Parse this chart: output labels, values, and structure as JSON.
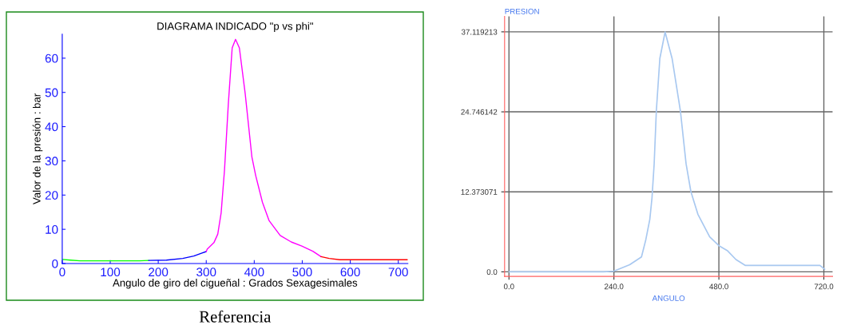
{
  "chart_data": [
    {
      "type": "line",
      "title": "DIAGRAMA INDICADO \"p vs phi\"",
      "xlabel": "Angulo de giro del cigueñal : Grados Sexagesimales",
      "ylabel": "Valor de la presión : bar",
      "xlim": [
        0,
        720
      ],
      "ylim": [
        0,
        67
      ],
      "xticks": [
        0,
        100,
        200,
        300,
        400,
        500,
        600,
        700
      ],
      "yticks": [
        0,
        10,
        20,
        30,
        40,
        50,
        60
      ],
      "grid": false,
      "annotations": [
        "Referencia"
      ],
      "series": [
        {
          "color": "#00ff00",
          "x": [
            0,
            17,
            37,
            161,
            180
          ],
          "values": [
            1.2,
            1.0,
            0.8,
            0.8,
            0.9
          ]
        },
        {
          "color": "#0000ff",
          "x": [
            180,
            217,
            251,
            274,
            290,
            300
          ],
          "values": [
            0.9,
            1.0,
            1.5,
            2.2,
            3.0,
            3.5
          ]
        },
        {
          "color": "#ff00ff",
          "x": [
            300,
            302,
            316,
            324,
            331,
            338,
            346,
            354,
            361,
            369,
            381,
            395,
            403,
            417,
            431,
            454,
            477,
            499,
            522,
            539
          ],
          "values": [
            3.5,
            4.2,
            6.1,
            8.6,
            14.8,
            27.3,
            46.7,
            63.0,
            65.5,
            63.0,
            49.8,
            31.2,
            25.7,
            17.9,
            12.5,
            8.2,
            6.3,
            5.1,
            3.6,
            2.0
          ]
        },
        {
          "color": "#ff0000",
          "x": [
            539,
            556,
            578,
            719
          ],
          "values": [
            2.0,
            1.5,
            1.1,
            1.1
          ]
        }
      ]
    },
    {
      "type": "line",
      "xlabel": "ANGULO",
      "ylabel": "PRESION",
      "xlim": [
        -10,
        740
      ],
      "ylim": [
        -0.7,
        39.5
      ],
      "xticks": [
        {
          "value": 0,
          "label": "0.0"
        },
        {
          "value": 240,
          "label": "240.0"
        },
        {
          "value": 480,
          "label": "480.0"
        },
        {
          "value": 720,
          "label": "720.0"
        }
      ],
      "yticks": [
        {
          "value": 0,
          "label": "0.0"
        },
        {
          "value": 12.373071,
          "label": "12.373071"
        },
        {
          "value": 24.746142,
          "label": "24.746142"
        },
        {
          "value": 37.119213,
          "label": "37.119213"
        }
      ],
      "grid": true,
      "series": [
        {
          "color": "#a8c8f0",
          "x": [
            0,
            216,
            240,
            276,
            303,
            313,
            322,
            327,
            332,
            337,
            345,
            357,
            373,
            392,
            405,
            416,
            432,
            459,
            481,
            499,
            519,
            540,
            711,
            722
          ],
          "values": [
            0,
            0,
            0.1,
            1.1,
            2.3,
            5.0,
            8.1,
            11.4,
            16.7,
            24.9,
            33.0,
            37.1,
            33.0,
            24.9,
            16.7,
            12.4,
            8.9,
            5.4,
            4.0,
            3.3,
            1.9,
            1.0,
            1.0,
            0.4
          ]
        }
      ]
    }
  ]
}
